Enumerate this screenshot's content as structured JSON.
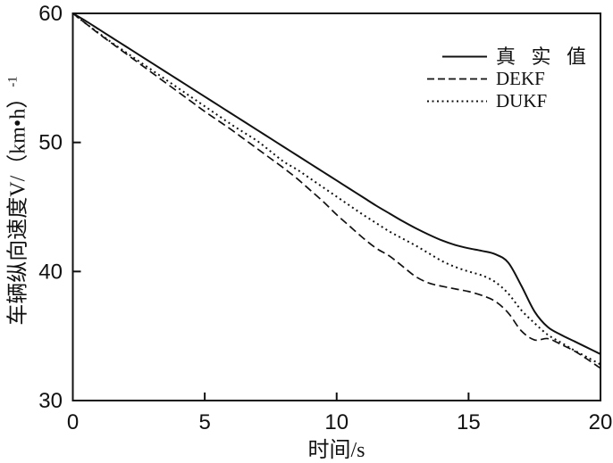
{
  "chart_data": {
    "type": "line",
    "title": "",
    "xlabel": "时间/s",
    "ylabel": "车辆纵向速度V/（km•h）",
    "ylabel_superscript": "-1",
    "xlim": [
      0,
      20
    ],
    "ylim": [
      30,
      60
    ],
    "xticks": [
      0,
      5,
      10,
      15,
      20
    ],
    "yticks": [
      30,
      40,
      50,
      60
    ],
    "grid": false,
    "legend_position": "upper-right",
    "x_step": 0.5,
    "line_color": "#111111",
    "series": [
      {
        "name": "真 实 值",
        "style": "solid",
        "values": [
          60.0,
          59.4,
          58.75,
          58.1,
          57.45,
          56.8,
          56.15,
          55.5,
          54.85,
          54.2,
          53.55,
          52.9,
          52.25,
          51.6,
          50.95,
          50.3,
          49.65,
          49.0,
          48.35,
          47.7,
          47.05,
          46.4,
          45.75,
          45.1,
          44.5,
          43.9,
          43.35,
          42.85,
          42.4,
          42.05,
          41.8,
          41.6,
          41.35,
          40.7,
          38.9,
          36.9,
          35.7,
          35.1,
          34.6,
          34.1,
          33.6
        ]
      },
      {
        "name": "DEKF",
        "style": "dashed",
        "values": [
          60.0,
          59.2,
          58.4,
          57.65,
          56.9,
          56.15,
          55.4,
          54.65,
          53.9,
          53.15,
          52.4,
          51.7,
          51.0,
          50.25,
          49.5,
          48.75,
          48.0,
          47.2,
          46.3,
          45.4,
          44.4,
          43.5,
          42.6,
          41.8,
          41.2,
          40.4,
          39.6,
          39.1,
          38.85,
          38.65,
          38.45,
          38.15,
          37.7,
          36.8,
          35.4,
          34.7,
          34.8,
          34.35,
          33.85,
          33.2,
          32.5
        ]
      },
      {
        "name": "DUKF",
        "style": "dotted",
        "values": [
          60.0,
          59.2,
          58.45,
          57.7,
          57.0,
          56.3,
          55.6,
          54.9,
          54.2,
          53.5,
          52.8,
          52.1,
          51.4,
          50.75,
          50.1,
          49.3,
          48.5,
          47.9,
          47.2,
          46.5,
          45.8,
          45.1,
          44.4,
          43.75,
          43.1,
          42.55,
          42.0,
          41.4,
          40.8,
          40.35,
          40.0,
          39.7,
          39.2,
          38.3,
          37.0,
          36.0,
          35.1,
          34.5,
          33.9,
          33.35,
          32.8
        ]
      }
    ]
  }
}
